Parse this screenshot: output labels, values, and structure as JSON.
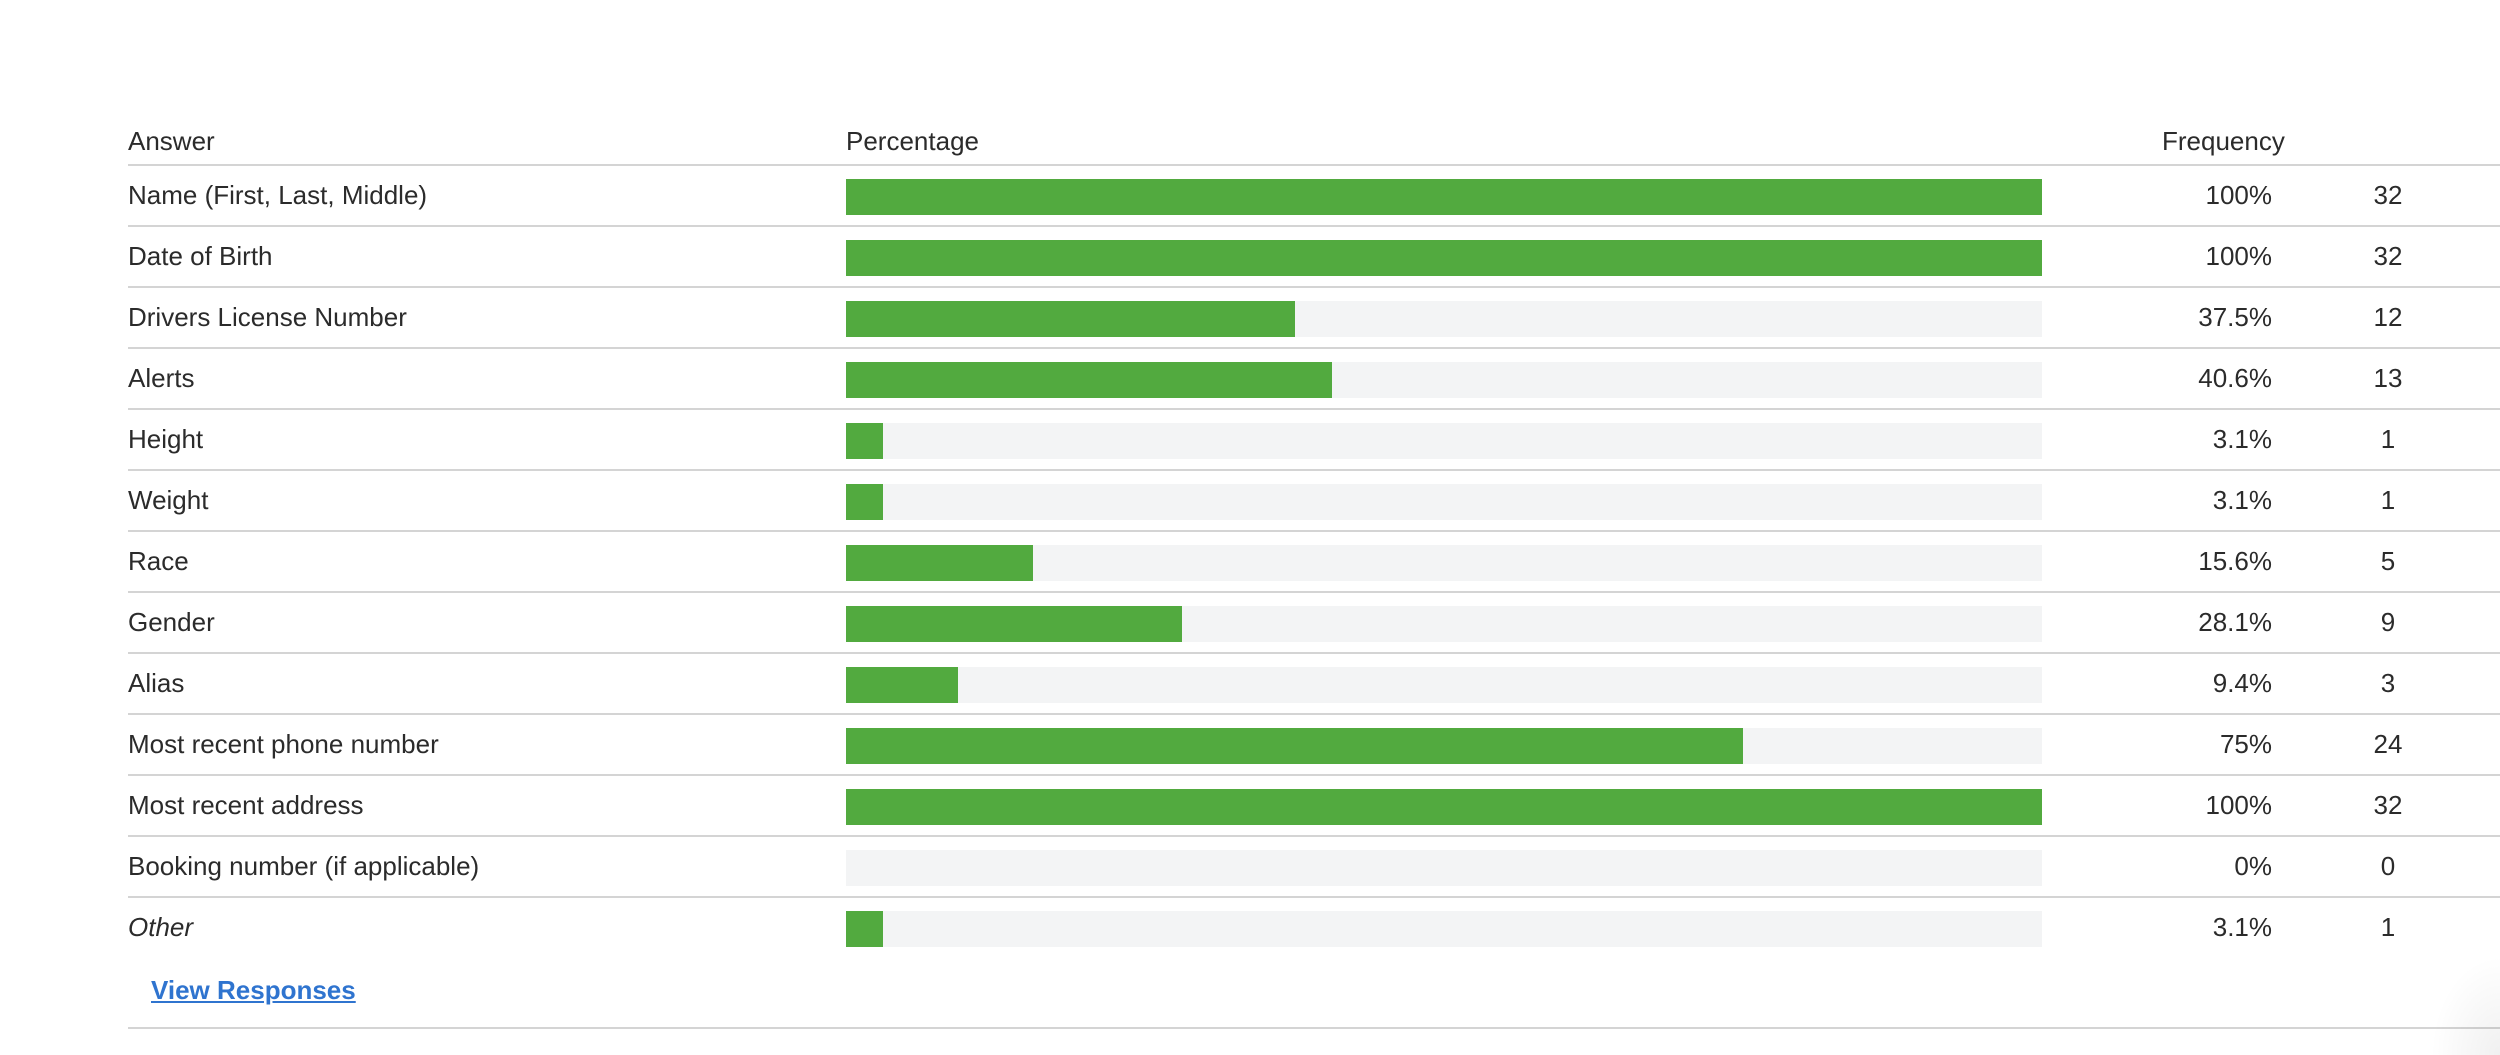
{
  "table": {
    "headers": {
      "answer": "Answer",
      "percentage": "Percentage",
      "frequency": "Frequency"
    },
    "rows": [
      {
        "answer": "Name (First, Last, Middle)",
        "percent": 100,
        "percent_label": "100%",
        "count": "32",
        "italic": false
      },
      {
        "answer": "Date of Birth",
        "percent": 100,
        "percent_label": "100%",
        "count": "32",
        "italic": false
      },
      {
        "answer": "Drivers License Number",
        "percent": 37.5,
        "percent_label": "37.5%",
        "count": "12",
        "italic": false
      },
      {
        "answer": "Alerts",
        "percent": 40.6,
        "percent_label": "40.6%",
        "count": "13",
        "italic": false
      },
      {
        "answer": "Height",
        "percent": 3.1,
        "percent_label": "3.1%",
        "count": "1",
        "italic": false
      },
      {
        "answer": "Weight",
        "percent": 3.1,
        "percent_label": "3.1%",
        "count": "1",
        "italic": false
      },
      {
        "answer": "Race",
        "percent": 15.6,
        "percent_label": "15.6%",
        "count": "5",
        "italic": false
      },
      {
        "answer": "Gender",
        "percent": 28.1,
        "percent_label": "28.1%",
        "count": "9",
        "italic": false
      },
      {
        "answer": "Alias",
        "percent": 9.4,
        "percent_label": "9.4%",
        "count": "3",
        "italic": false
      },
      {
        "answer": "Most recent phone number",
        "percent": 75,
        "percent_label": "75%",
        "count": "24",
        "italic": false
      },
      {
        "answer": "Most recent address",
        "percent": 100,
        "percent_label": "100%",
        "count": "32",
        "italic": false
      },
      {
        "answer": "Booking number (if applicable)",
        "percent": 0,
        "percent_label": "0%",
        "count": "0",
        "italic": false
      },
      {
        "answer": "Other",
        "percent": 3.1,
        "percent_label": "3.1%",
        "count": "1",
        "italic": true
      }
    ]
  },
  "view_responses_label": "View Responses",
  "colors": {
    "bar_fill": "#52aa3f",
    "bar_track": "#f3f4f5",
    "link": "#2f74cf",
    "divider": "#d4d4d4"
  }
}
